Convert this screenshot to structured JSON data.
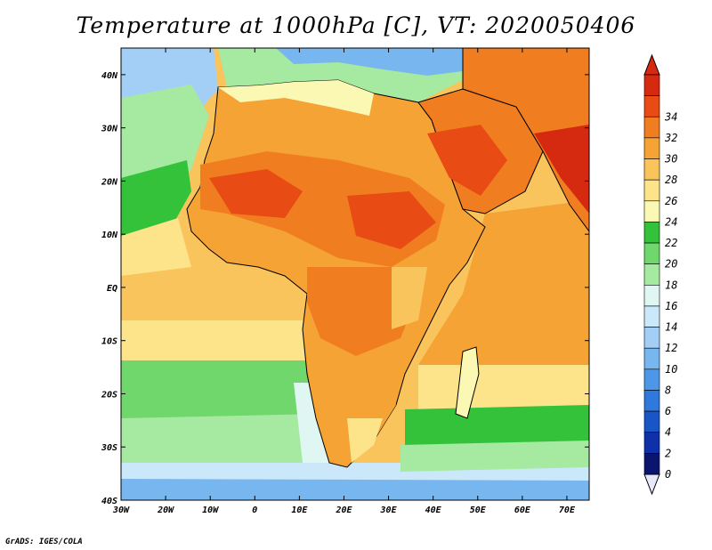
{
  "title": "Temperature at 1000hPa [C], VT: 2020050406",
  "credit": "GrADS: IGES/COLA",
  "map": {
    "variable": "Temperature at 1000hPa",
    "units": "C",
    "valid_time": "2020050406",
    "lon_range": [
      -30,
      75
    ],
    "lat_range": [
      -40,
      45
    ],
    "lon_labels": [
      {
        "lon": -30,
        "label": "30W"
      },
      {
        "lon": -20,
        "label": "20W"
      },
      {
        "lon": -10,
        "label": "10W"
      },
      {
        "lon": 0,
        "label": "0"
      },
      {
        "lon": 10,
        "label": "10E"
      },
      {
        "lon": 20,
        "label": "20E"
      },
      {
        "lon": 30,
        "label": "30E"
      },
      {
        "lon": 40,
        "label": "40E"
      },
      {
        "lon": 50,
        "label": "50E"
      },
      {
        "lon": 60,
        "label": "60E"
      },
      {
        "lon": 70,
        "label": "70E"
      }
    ],
    "lat_labels": [
      {
        "lat": 40,
        "label": "40N"
      },
      {
        "lat": 30,
        "label": "30N"
      },
      {
        "lat": 20,
        "label": "20N"
      },
      {
        "lat": 10,
        "label": "10N"
      },
      {
        "lat": 0,
        "label": "EQ"
      },
      {
        "lat": -10,
        "label": "10S"
      },
      {
        "lat": -20,
        "label": "20S"
      },
      {
        "lat": -30,
        "label": "30S"
      },
      {
        "lat": -40,
        "label": "40S"
      }
    ]
  },
  "colorbar": {
    "levels": [
      "0",
      "2",
      "4",
      "6",
      "8",
      "10",
      "12",
      "14",
      "16",
      "18",
      "20",
      "22",
      "24",
      "26",
      "28",
      "30",
      "32",
      "34"
    ],
    "colors": [
      "#0b1570",
      "#0e30a8",
      "#1a55c8",
      "#2f79dc",
      "#4e97e8",
      "#78b6f0",
      "#a3cff6",
      "#cbe7fa",
      "#dff6f2",
      "#a6e9a0",
      "#6fd76c",
      "#33c23a",
      "#fbf8b4",
      "#fde48a",
      "#f9c45c",
      "#f6a335",
      "#f07d20",
      "#e84b13",
      "#d62a10"
    ],
    "under_color": "#e8e8fb",
    "over_color": "#d62a10"
  }
}
